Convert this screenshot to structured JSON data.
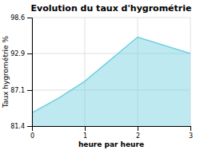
{
  "chart_data": {
    "type": "area",
    "title": "Evolution du taux d'hygrométrie",
    "xlabel": "heure par heure",
    "ylabel": "Taux hygrométrie %",
    "x": [
      0,
      0.5,
      1,
      2,
      3
    ],
    "values": [
      83.5,
      85.8,
      88.5,
      95.5,
      92.9
    ],
    "color": "#6ecfdf",
    "xlim": [
      0,
      3
    ],
    "ylim": [
      81.4,
      98.6
    ],
    "xticks": [
      0,
      1,
      2,
      3
    ],
    "yticks": [
      81.4,
      87.1,
      92.9,
      98.6
    ],
    "grid": true
  }
}
